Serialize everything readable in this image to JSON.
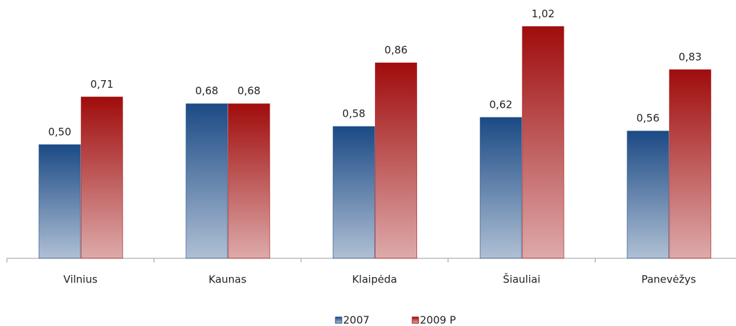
{
  "chart_data": {
    "type": "bar",
    "categories": [
      "Vilnius",
      "Kaunas",
      "Klaipėda",
      "Šiauliai",
      "Panevėžys"
    ],
    "series": [
      {
        "name": "2007",
        "color": "#1b4a85",
        "values": [
          0.5,
          0.68,
          0.58,
          0.62,
          0.56
        ],
        "value_labels": [
          "0,50",
          "0,68",
          "0,58",
          "0,62",
          "0,56"
        ]
      },
      {
        "name": "2009 P",
        "color": "#a00c0c",
        "values": [
          0.71,
          0.68,
          0.86,
          1.02,
          0.83
        ],
        "value_labels": [
          "0,71",
          "0,68",
          "0,86",
          "1,02",
          "0,83"
        ]
      }
    ],
    "ylim": [
      0,
      1.1
    ],
    "legend": "bottom"
  }
}
